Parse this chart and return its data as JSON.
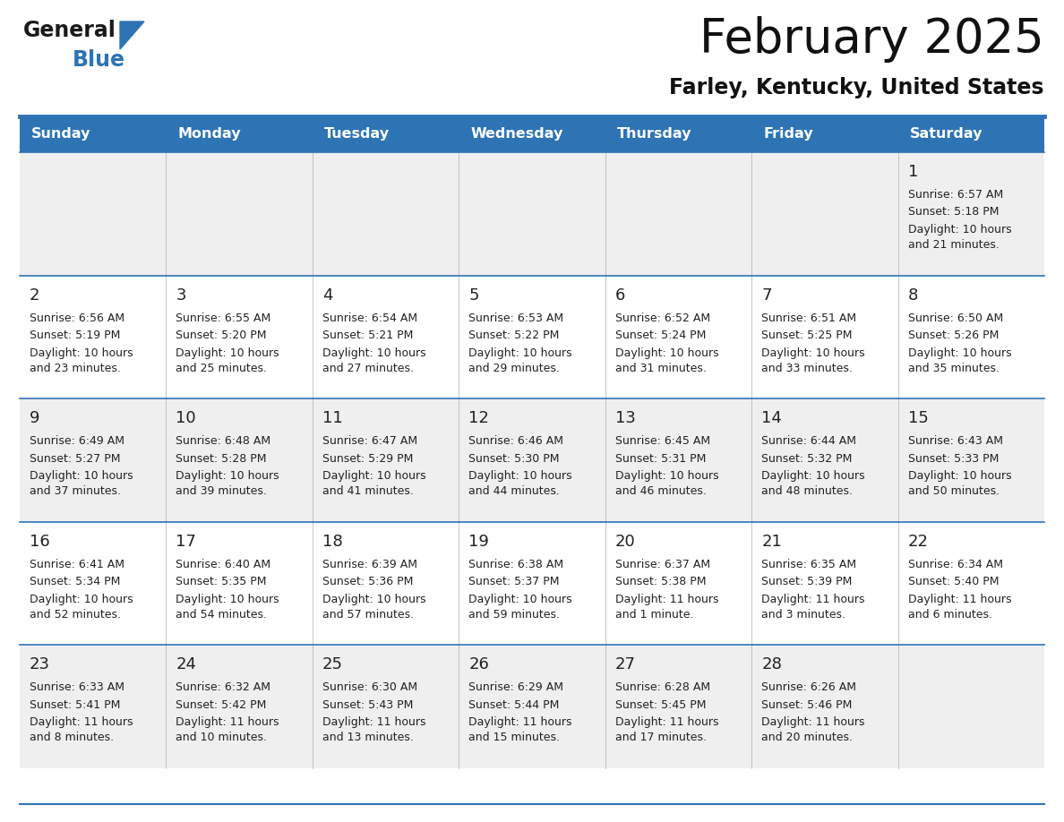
{
  "title": "February 2025",
  "subtitle": "Farley, Kentucky, United States",
  "header_bg": "#2E74B5",
  "header_text_color": "#FFFFFF",
  "cell_bg_white": "#FFFFFF",
  "cell_bg_gray": "#EFEFEF",
  "divider_color": "#2E74B5",
  "text_color": "#222222",
  "days_of_week": [
    "Sunday",
    "Monday",
    "Tuesday",
    "Wednesday",
    "Thursday",
    "Friday",
    "Saturday"
  ],
  "calendar_data": [
    [
      {
        "day": null,
        "sunrise": null,
        "sunset": null,
        "daylight": null
      },
      {
        "day": null,
        "sunrise": null,
        "sunset": null,
        "daylight": null
      },
      {
        "day": null,
        "sunrise": null,
        "sunset": null,
        "daylight": null
      },
      {
        "day": null,
        "sunrise": null,
        "sunset": null,
        "daylight": null
      },
      {
        "day": null,
        "sunrise": null,
        "sunset": null,
        "daylight": null
      },
      {
        "day": null,
        "sunrise": null,
        "sunset": null,
        "daylight": null
      },
      {
        "day": 1,
        "sunrise": "6:57 AM",
        "sunset": "5:18 PM",
        "daylight": "10 hours\nand 21 minutes."
      }
    ],
    [
      {
        "day": 2,
        "sunrise": "6:56 AM",
        "sunset": "5:19 PM",
        "daylight": "10 hours\nand 23 minutes."
      },
      {
        "day": 3,
        "sunrise": "6:55 AM",
        "sunset": "5:20 PM",
        "daylight": "10 hours\nand 25 minutes."
      },
      {
        "day": 4,
        "sunrise": "6:54 AM",
        "sunset": "5:21 PM",
        "daylight": "10 hours\nand 27 minutes."
      },
      {
        "day": 5,
        "sunrise": "6:53 AM",
        "sunset": "5:22 PM",
        "daylight": "10 hours\nand 29 minutes."
      },
      {
        "day": 6,
        "sunrise": "6:52 AM",
        "sunset": "5:24 PM",
        "daylight": "10 hours\nand 31 minutes."
      },
      {
        "day": 7,
        "sunrise": "6:51 AM",
        "sunset": "5:25 PM",
        "daylight": "10 hours\nand 33 minutes."
      },
      {
        "day": 8,
        "sunrise": "6:50 AM",
        "sunset": "5:26 PM",
        "daylight": "10 hours\nand 35 minutes."
      }
    ],
    [
      {
        "day": 9,
        "sunrise": "6:49 AM",
        "sunset": "5:27 PM",
        "daylight": "10 hours\nand 37 minutes."
      },
      {
        "day": 10,
        "sunrise": "6:48 AM",
        "sunset": "5:28 PM",
        "daylight": "10 hours\nand 39 minutes."
      },
      {
        "day": 11,
        "sunrise": "6:47 AM",
        "sunset": "5:29 PM",
        "daylight": "10 hours\nand 41 minutes."
      },
      {
        "day": 12,
        "sunrise": "6:46 AM",
        "sunset": "5:30 PM",
        "daylight": "10 hours\nand 44 minutes."
      },
      {
        "day": 13,
        "sunrise": "6:45 AM",
        "sunset": "5:31 PM",
        "daylight": "10 hours\nand 46 minutes."
      },
      {
        "day": 14,
        "sunrise": "6:44 AM",
        "sunset": "5:32 PM",
        "daylight": "10 hours\nand 48 minutes."
      },
      {
        "day": 15,
        "sunrise": "6:43 AM",
        "sunset": "5:33 PM",
        "daylight": "10 hours\nand 50 minutes."
      }
    ],
    [
      {
        "day": 16,
        "sunrise": "6:41 AM",
        "sunset": "5:34 PM",
        "daylight": "10 hours\nand 52 minutes."
      },
      {
        "day": 17,
        "sunrise": "6:40 AM",
        "sunset": "5:35 PM",
        "daylight": "10 hours\nand 54 minutes."
      },
      {
        "day": 18,
        "sunrise": "6:39 AM",
        "sunset": "5:36 PM",
        "daylight": "10 hours\nand 57 minutes."
      },
      {
        "day": 19,
        "sunrise": "6:38 AM",
        "sunset": "5:37 PM",
        "daylight": "10 hours\nand 59 minutes."
      },
      {
        "day": 20,
        "sunrise": "6:37 AM",
        "sunset": "5:38 PM",
        "daylight": "11 hours\nand 1 minute."
      },
      {
        "day": 21,
        "sunrise": "6:35 AM",
        "sunset": "5:39 PM",
        "daylight": "11 hours\nand 3 minutes."
      },
      {
        "day": 22,
        "sunrise": "6:34 AM",
        "sunset": "5:40 PM",
        "daylight": "11 hours\nand 6 minutes."
      }
    ],
    [
      {
        "day": 23,
        "sunrise": "6:33 AM",
        "sunset": "5:41 PM",
        "daylight": "11 hours\nand 8 minutes."
      },
      {
        "day": 24,
        "sunrise": "6:32 AM",
        "sunset": "5:42 PM",
        "daylight": "11 hours\nand 10 minutes."
      },
      {
        "day": 25,
        "sunrise": "6:30 AM",
        "sunset": "5:43 PM",
        "daylight": "11 hours\nand 13 minutes."
      },
      {
        "day": 26,
        "sunrise": "6:29 AM",
        "sunset": "5:44 PM",
        "daylight": "11 hours\nand 15 minutes."
      },
      {
        "day": 27,
        "sunrise": "6:28 AM",
        "sunset": "5:45 PM",
        "daylight": "11 hours\nand 17 minutes."
      },
      {
        "day": 28,
        "sunrise": "6:26 AM",
        "sunset": "5:46 PM",
        "daylight": "11 hours\nand 20 minutes."
      },
      {
        "day": null,
        "sunrise": null,
        "sunset": null,
        "daylight": null
      }
    ]
  ],
  "logo_general_color": "#1a1a1a",
  "logo_blue_color": "#2E74B5",
  "title_fontsize": 38,
  "subtitle_fontsize": 17,
  "header_fontsize": 11.5,
  "day_num_fontsize": 13,
  "cell_text_fontsize": 9
}
